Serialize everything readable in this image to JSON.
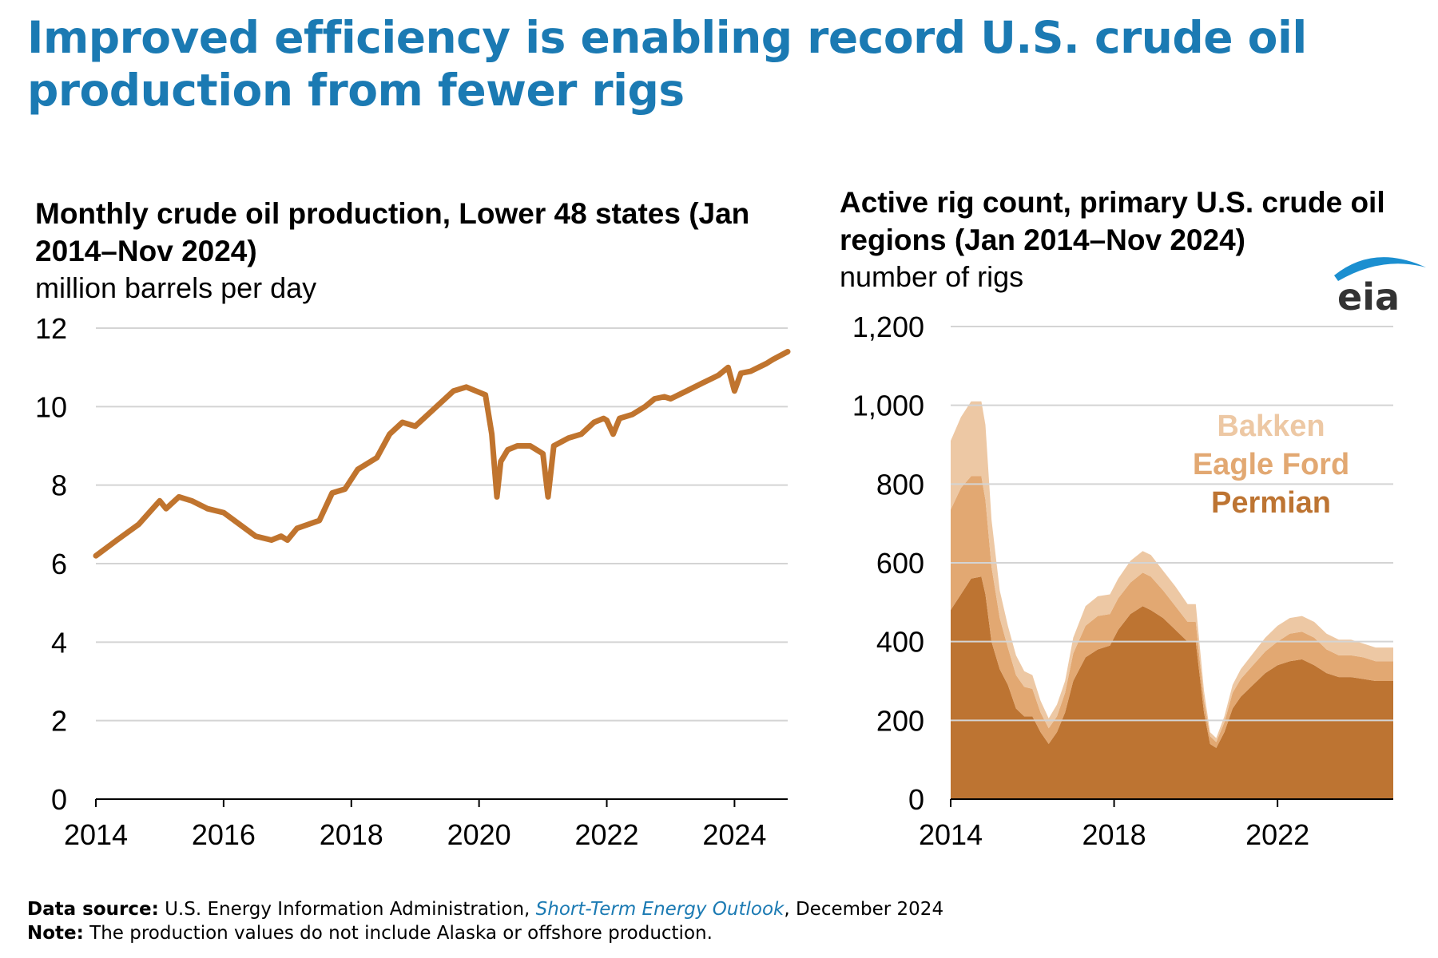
{
  "title": "Improved efficiency is enabling record U.S. crude oil production from fewer rigs",
  "logo_text": "eia",
  "footer": {
    "source_label": "Data source:",
    "source_text": " U.S. Energy Information Administration, ",
    "source_link": "Short-Term Energy Outlook",
    "source_date": ", December 2024",
    "note_label": "Note:",
    "note_text": " The production values do not include Alaska or offshore production."
  },
  "colors": {
    "title": "#1b7ab3",
    "production_line": "#c0742e",
    "permian": "#bd7432",
    "eagle_ford": "#e2a872",
    "bakken": "#edc8a4",
    "grid": "#d4d4d4"
  },
  "chart_data": [
    {
      "type": "line",
      "title": "Monthly crude oil production, Lower 48 states (Jan 2014–Nov 2024)",
      "ylabel": "million barrels per day",
      "xlim": [
        2014.0,
        2024.833
      ],
      "ylim": [
        0,
        12
      ],
      "yticks": [
        "0",
        "2",
        "4",
        "6",
        "8",
        "10",
        "12"
      ],
      "xticks": [
        "2014",
        "2016",
        "2018",
        "2020",
        "2022",
        "2024"
      ],
      "grid": true,
      "series": [
        {
          "x": [
            2014.0,
            2014.33,
            2014.67,
            2015.0,
            2015.1,
            2015.3,
            2015.5,
            2015.75,
            2016.0,
            2016.25,
            2016.5,
            2016.75,
            2016.9,
            2017.0,
            2017.15,
            2017.5,
            2017.7,
            2017.9,
            2018.1,
            2018.4,
            2018.6,
            2018.8,
            2019.0,
            2019.2,
            2019.4,
            2019.6,
            2019.8,
            2019.95,
            2020.1,
            2020.2,
            2020.28,
            2020.34,
            2020.45,
            2020.6,
            2020.8,
            2020.9,
            2021.0,
            2021.08,
            2021.17,
            2021.4,
            2021.6,
            2021.8,
            2021.95,
            2022.0,
            2022.1,
            2022.2,
            2022.4,
            2022.6,
            2022.75,
            2022.9,
            2023.0,
            2023.25,
            2023.5,
            2023.75,
            2023.9,
            2024.0,
            2024.1,
            2024.25,
            2024.5,
            2024.6,
            2024.833
          ],
          "y": [
            6.2,
            6.6,
            7.0,
            7.6,
            7.4,
            7.7,
            7.6,
            7.4,
            7.3,
            7.0,
            6.7,
            6.6,
            6.7,
            6.6,
            6.9,
            7.1,
            7.8,
            7.9,
            8.4,
            8.7,
            9.3,
            9.6,
            9.5,
            9.8,
            10.1,
            10.4,
            10.5,
            10.4,
            10.3,
            9.3,
            7.7,
            8.6,
            8.9,
            9.0,
            9.0,
            8.9,
            8.8,
            7.7,
            9.0,
            9.2,
            9.3,
            9.6,
            9.7,
            9.65,
            9.3,
            9.7,
            9.8,
            10.0,
            10.2,
            10.25,
            10.2,
            10.4,
            10.6,
            10.8,
            11.0,
            10.4,
            10.85,
            10.9,
            11.1,
            11.2,
            11.4
          ]
        }
      ]
    },
    {
      "type": "area",
      "stacked": true,
      "title": "Active rig count, primary U.S. crude oil regions (Jan 2014–Nov 2024)",
      "ylabel": "number of rigs",
      "xlim": [
        2014.0,
        2024.833
      ],
      "ylim": [
        0,
        1200
      ],
      "yticks": [
        "0",
        "200",
        "400",
        "600",
        "800",
        "1,000",
        "1,200"
      ],
      "xticks": [
        "2014",
        "2018",
        "2022"
      ],
      "grid": true,
      "legend_placement": "top-right",
      "x": [
        2014.0,
        2014.25,
        2014.5,
        2014.75,
        2014.85,
        2015.0,
        2015.2,
        2015.4,
        2015.6,
        2015.8,
        2016.0,
        2016.2,
        2016.4,
        2016.6,
        2016.8,
        2017.0,
        2017.3,
        2017.6,
        2017.9,
        2018.1,
        2018.4,
        2018.7,
        2018.9,
        2019.2,
        2019.5,
        2019.8,
        2020.0,
        2020.2,
        2020.35,
        2020.5,
        2020.7,
        2020.9,
        2021.1,
        2021.4,
        2021.7,
        2022.0,
        2022.3,
        2022.6,
        2022.9,
        2023.2,
        2023.5,
        2023.8,
        2024.1,
        2024.4,
        2024.833
      ],
      "series": [
        {
          "name": "Permian",
          "values": [
            480,
            520,
            560,
            565,
            520,
            400,
            330,
            290,
            230,
            210,
            210,
            170,
            140,
            170,
            220,
            300,
            360,
            380,
            390,
            430,
            470,
            490,
            480,
            460,
            430,
            400,
            400,
            220,
            140,
            130,
            170,
            230,
            260,
            290,
            320,
            340,
            350,
            355,
            340,
            320,
            310,
            310,
            305,
            300,
            300
          ]
        },
        {
          "name": "Eagle Ford",
          "values": [
            255,
            270,
            260,
            255,
            240,
            190,
            130,
            95,
            85,
            75,
            70,
            50,
            40,
            40,
            50,
            70,
            80,
            85,
            80,
            80,
            80,
            85,
            85,
            70,
            60,
            50,
            50,
            30,
            20,
            15,
            25,
            40,
            45,
            50,
            55,
            60,
            70,
            70,
            70,
            60,
            55,
            55,
            55,
            50,
            50
          ]
        },
        {
          "name": "Bakken",
          "values": [
            175,
            180,
            190,
            190,
            190,
            120,
            70,
            55,
            50,
            40,
            35,
            30,
            25,
            30,
            30,
            40,
            50,
            50,
            50,
            50,
            55,
            55,
            55,
            50,
            50,
            45,
            45,
            25,
            10,
            10,
            15,
            20,
            25,
            30,
            35,
            40,
            40,
            40,
            40,
            40,
            40,
            40,
            35,
            35,
            35
          ]
        }
      ]
    }
  ]
}
